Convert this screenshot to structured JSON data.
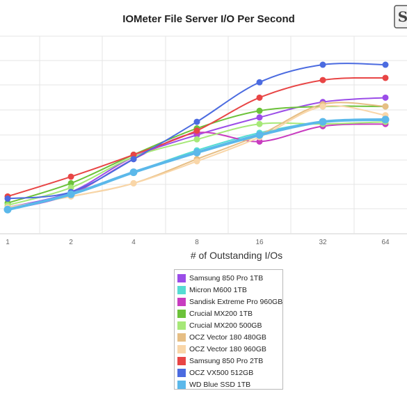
{
  "chart_data": {
    "type": "line",
    "title": "IOMeter File Server I/O Per Second",
    "xlabel": "# of Outstanding I/Os",
    "ylabel": "",
    "categories": [
      "1",
      "2",
      "4",
      "8",
      "16",
      "32",
      "64"
    ],
    "grid": true,
    "legend_position": "bottom-center",
    "ylim": [
      0,
      9
    ],
    "series": [
      {
        "name": "Samsung 850 Pro 1TB",
        "color": "#9b4de8",
        "values": [
          1.2,
          1.9,
          3.5,
          4.5,
          5.3,
          6.0,
          6.2
        ]
      },
      {
        "name": "Micron M600 1TB",
        "color": "#55dcd3",
        "values": [
          1.1,
          1.8,
          2.8,
          3.8,
          4.6,
          5.1,
          5.2
        ]
      },
      {
        "name": "Sandisk Extreme Pro 960GB",
        "color": "#c83cc0",
        "values": [
          1.1,
          1.8,
          3.4,
          4.6,
          4.2,
          4.9,
          5.0
        ]
      },
      {
        "name": "Crucial MX200 1TB",
        "color": "#6cc23a",
        "values": [
          1.4,
          2.3,
          3.6,
          4.8,
          5.6,
          5.8,
          5.8
        ]
      },
      {
        "name": "Crucial MX200 500GB",
        "color": "#a6e878",
        "values": [
          1.3,
          2.1,
          3.5,
          4.3,
          5.0,
          5.0,
          5.1
        ]
      },
      {
        "name": "OCZ Vector 180 480GB",
        "color": "#e6be84",
        "values": [
          1.2,
          1.7,
          2.3,
          3.4,
          4.5,
          5.9,
          5.8
        ]
      },
      {
        "name": "OCZ Vector 180 960GB",
        "color": "#f9d6a8",
        "values": [
          1.2,
          1.7,
          2.3,
          3.3,
          4.4,
          5.8,
          5.4
        ]
      },
      {
        "name": "Samsung 850 Pro 2TB",
        "color": "#e84545",
        "values": [
          1.7,
          2.6,
          3.6,
          4.7,
          6.2,
          7.0,
          7.1
        ]
      },
      {
        "name": "OCZ VX500 512GB",
        "color": "#4b6be0",
        "values": [
          1.6,
          1.9,
          3.4,
          5.1,
          6.9,
          7.7,
          7.7
        ]
      },
      {
        "name": "WD Blue SSD 1TB",
        "color": "#5bb8ea",
        "values": [
          1.1,
          1.8,
          2.8,
          3.7,
          4.5,
          5.1,
          5.2
        ]
      }
    ]
  },
  "logo": {
    "icon": "site-logo-icon",
    "text": "S"
  }
}
